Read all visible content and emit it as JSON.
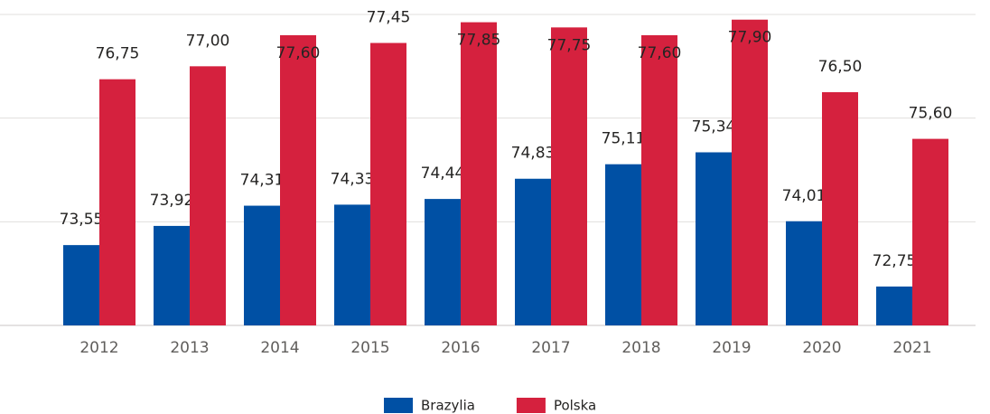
{
  "chart_data": {
    "type": "bar",
    "categories": [
      "2012",
      "2013",
      "2014",
      "2015",
      "2016",
      "2017",
      "2018",
      "2019",
      "2020",
      "2021"
    ],
    "series": [
      {
        "name": "Brazylia",
        "color": "#0050a4",
        "values": [
          73.55,
          73.92,
          74.31,
          74.33,
          74.44,
          74.83,
          75.11,
          75.34,
          74.01,
          72.75
        ],
        "value_labels": [
          "73,55",
          "73,92",
          "74,31",
          "74,33",
          "74,44",
          "74,83",
          "75,11",
          "75,34",
          "74,01",
          "72,75"
        ]
      },
      {
        "name": "Polska",
        "color": "#d5213e",
        "values": [
          76.75,
          77.0,
          77.6,
          77.45,
          77.85,
          77.75,
          77.6,
          77.9,
          76.5,
          75.6
        ],
        "value_labels": [
          "76,75",
          "77,00",
          "77,60",
          "77,45",
          "77,85",
          "77,75",
          "77,60",
          "77,90",
          "76,50",
          "75,60"
        ]
      }
    ],
    "ylim": [
      72,
      78
    ],
    "yticks": [
      72,
      74,
      76,
      78
    ],
    "grid": true
  }
}
